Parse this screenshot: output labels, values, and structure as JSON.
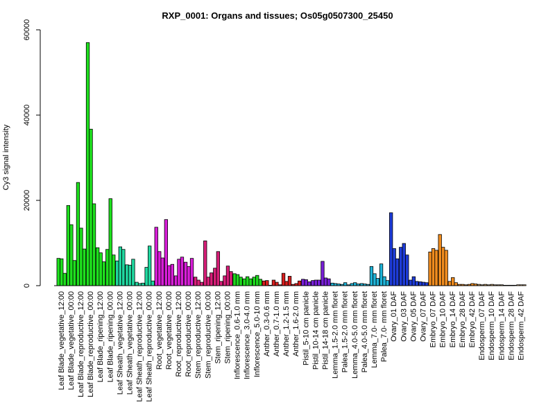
{
  "chart_data": {
    "type": "bar",
    "title": "RXP_0001: Organs and tissues; Os05g0507300_25450",
    "ylabel": "Cy3 signal intensity",
    "xlabel": "",
    "ylim": [
      0,
      60000
    ],
    "yticks": [
      0,
      20000,
      40000,
      60000
    ],
    "grid": false,
    "legend": "none",
    "groups": [
      {
        "label": "Leaf Blade_vegetative_12:00",
        "color": "#1ee01e",
        "values": [
          6400,
          6300,
          2900
        ]
      },
      {
        "label": "Leaf Blade_vegetative_00:00",
        "color": "#1ee01e",
        "values": [
          18800,
          14300,
          5900
        ]
      },
      {
        "label": "Leaf Blade_reproductive_12:00",
        "color": "#1ee01e",
        "values": [
          24200,
          13500,
          8600
        ]
      },
      {
        "label": "Leaf Blade_reproductive_00:00",
        "color": "#1ee01e",
        "values": [
          57000,
          36700,
          19200
        ]
      },
      {
        "label": "Leaf Blade_ripening_12:00",
        "color": "#1ee01e",
        "values": [
          8900,
          7700,
          5600
        ]
      },
      {
        "label": "Leaf Blade_ripening_00:00",
        "color": "#1ee01e",
        "values": [
          8500,
          20400,
          7200
        ]
      },
      {
        "label": "Leaf Sheath_vegetative_12:00",
        "color": "#20d8a0",
        "values": [
          5800,
          9100,
          8500
        ]
      },
      {
        "label": "Leaf Sheath_vegetative_00:00",
        "color": "#20d8a0",
        "values": [
          4900,
          4800,
          6200
        ]
      },
      {
        "label": "Leaf Sheath_reproductive_12:00",
        "color": "#20d8a0",
        "values": [
          800,
          500,
          600
        ]
      },
      {
        "label": "Leaf Sheath_reproductive_00:00",
        "color": "#20d8a0",
        "values": [
          4300,
          9300,
          1100
        ]
      },
      {
        "label": "Root_vegetative_12:00",
        "color": "#d81ed8",
        "values": [
          13700,
          8000,
          6500
        ]
      },
      {
        "label": "Root_vegetative_00:00",
        "color": "#d81ed8",
        "values": [
          15500,
          4700,
          5000
        ]
      },
      {
        "label": "Root_reproductive_12:00",
        "color": "#d81ed8",
        "values": [
          2300,
          6200,
          6700
        ]
      },
      {
        "label": "Root_reproductive_00:00",
        "color": "#d81ed8",
        "values": [
          5500,
          4500,
          6400
        ]
      },
      {
        "label": "Stem_reproductive_12:00",
        "color": "#d81e78",
        "values": [
          2000,
          1300,
          800
        ]
      },
      {
        "label": "Stem_reproductive_00:00",
        "color": "#d81e78",
        "values": [
          10500,
          2000,
          3000
        ]
      },
      {
        "label": "Stem_ripening_12:00",
        "color": "#d81e78",
        "values": [
          4100,
          8000,
          1000
        ]
      },
      {
        "label": "Stem_ripening_00:00",
        "color": "#d81e78",
        "values": [
          2300,
          4600,
          3300
        ]
      },
      {
        "label": "Inflorescence_0.6-1.0 mm",
        "color": "#1ed81e",
        "values": [
          2800,
          2600,
          2000
        ]
      },
      {
        "label": "Inflorescence_3.0-4.0 mm",
        "color": "#1ed81e",
        "values": [
          1600,
          2100,
          1600
        ]
      },
      {
        "label": "Inflorescence_5.0-10 mm",
        "color": "#1ed81e",
        "values": [
          2000,
          2400,
          1500
        ]
      },
      {
        "label": "Anther_0.3-0.6 mm",
        "color": "#d81e1e",
        "values": [
          1100,
          1200,
          100
        ]
      },
      {
        "label": "Anther_0.7-1.0 mm",
        "color": "#d81e1e",
        "values": [
          1300,
          800,
          200
        ]
      },
      {
        "label": "Anther_1.2-1.5 mm",
        "color": "#d81e1e",
        "values": [
          2900,
          1000,
          2200
        ]
      },
      {
        "label": "Anther_1.6-2.0 mm",
        "color": "#d81e1e",
        "values": [
          300,
          500,
          1100
        ]
      },
      {
        "label": "Pistil_5-10 cm panicle",
        "color": "#781ed8",
        "values": [
          1500,
          1400,
          900
        ]
      },
      {
        "label": "Pistil_10-14 cm panicle",
        "color": "#781ed8",
        "values": [
          1200,
          1300,
          1300
        ]
      },
      {
        "label": "Pistil_14-18 cm panicle",
        "color": "#781ed8",
        "values": [
          5700,
          1800,
          1600
        ]
      },
      {
        "label": "Lemma_1.5-2.0 mm floret",
        "color": "#1eb4d8",
        "values": [
          600,
          500,
          400
        ]
      },
      {
        "label": "Palea_1.5-2.0 mm floret",
        "color": "#1eb4d8",
        "values": [
          300,
          700,
          200
        ]
      },
      {
        "label": "Lemma_4.0-5.0 mm floret",
        "color": "#1eb4d8",
        "values": [
          500,
          700,
          400
        ]
      },
      {
        "label": "Palea_4.0-5.0 mm floret",
        "color": "#1eb4d8",
        "values": [
          500,
          400,
          300
        ]
      },
      {
        "label": "Lemma_7.0- mm floret",
        "color": "#1eb4d8",
        "values": [
          4500,
          2800,
          1700
        ]
      },
      {
        "label": "Palea_7.0- mm floret",
        "color": "#1eb4d8",
        "values": [
          5100,
          2100,
          1200
        ]
      },
      {
        "label": "Ovary_01 DAF",
        "color": "#1e3cd8",
        "values": [
          17100,
          8700,
          6300
        ]
      },
      {
        "label": "Ovary_03 DAF",
        "color": "#1e3cd8",
        "values": [
          9000,
          9900,
          7200
        ]
      },
      {
        "label": "Ovary_05 DAF",
        "color": "#1e3cd8",
        "values": [
          1300,
          2100,
          1000
        ]
      },
      {
        "label": "Ovary_07 DAF",
        "color": "#1e3cd8",
        "values": [
          900,
          800,
          700
        ]
      },
      {
        "label": "Embryo_07 DAF",
        "color": "#f08c1e",
        "values": [
          7900,
          8700,
          8300
        ]
      },
      {
        "label": "Embryo_10 DAF",
        "color": "#f08c1e",
        "values": [
          12000,
          9000,
          8300
        ]
      },
      {
        "label": "Embryo_14 DAF",
        "color": "#f08c1e",
        "values": [
          1000,
          1900,
          700
        ]
      },
      {
        "label": "Embryo_28 DAF",
        "color": "#f08c1e",
        "values": [
          300,
          300,
          200
        ]
      },
      {
        "label": "Embryo_42 DAF",
        "color": "#f08c1e",
        "values": [
          300,
          500,
          400
        ]
      },
      {
        "label": "Endosperm_07 DAF",
        "color": "#c8a064",
        "values": [
          300,
          200,
          300
        ]
      },
      {
        "label": "Endosperm_10 DAF",
        "color": "#c8a064",
        "values": [
          200,
          300,
          200
        ]
      },
      {
        "label": "Endosperm_14 DAF",
        "color": "#c8a064",
        "values": [
          200,
          200,
          100
        ]
      },
      {
        "label": "Endosperm_28 DAF",
        "color": "#c8a064",
        "values": [
          100,
          100,
          100
        ]
      },
      {
        "label": "Endosperm_42 DAF",
        "color": "#c8a064",
        "values": [
          200,
          200,
          200
        ]
      }
    ]
  }
}
